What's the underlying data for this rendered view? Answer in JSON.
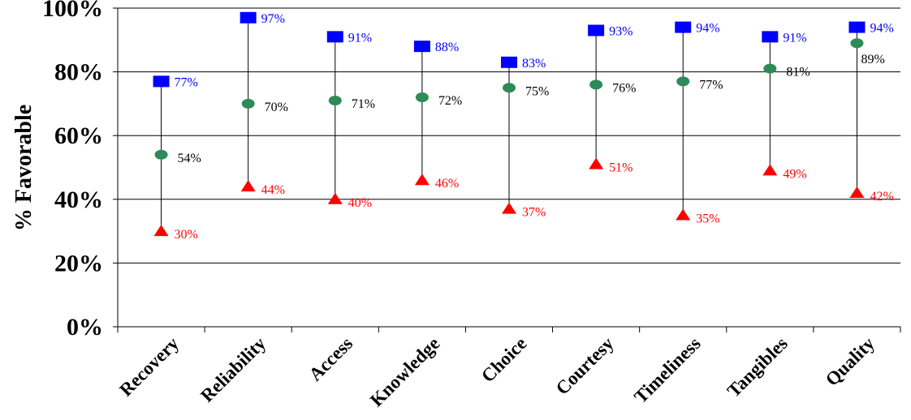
{
  "chart_data": {
    "type": "scatter",
    "title": "",
    "xlabel": "",
    "ylabel": "% Favorable",
    "ylim": [
      0,
      100
    ],
    "yticks": [
      0,
      20,
      40,
      60,
      80,
      100
    ],
    "ytick_labels": [
      "0%",
      "20%",
      "40%",
      "60%",
      "80%",
      "100%"
    ],
    "grid": "horizontal",
    "legend": "none",
    "categories": [
      "Recovery",
      "Reliability",
      "Access",
      "Knowledge",
      "Choice",
      "Courtesy",
      "Timeliness",
      "Tangibles",
      "Quality"
    ],
    "series": [
      {
        "marker": "square",
        "color": "#0000ff",
        "values": [
          77,
          97,
          91,
          88,
          83,
          93,
          94,
          91,
          94
        ],
        "labels": [
          "77%",
          "97%",
          "91%",
          "88%",
          "83%",
          "93%",
          "94%",
          "91%",
          "94%"
        ]
      },
      {
        "marker": "circle",
        "color": "#2e8b57",
        "values": [
          54,
          70,
          71,
          72,
          75,
          76,
          77,
          81,
          89
        ],
        "labels": [
          "54%",
          "70%",
          "71%",
          "72%",
          "75%",
          "76%",
          "77%",
          "81%",
          "89%"
        ]
      },
      {
        "marker": "triangle",
        "color": "#ff0000",
        "values": [
          30,
          44,
          40,
          46,
          37,
          51,
          35,
          49,
          42
        ],
        "labels": [
          "30%",
          "44%",
          "40%",
          "46%",
          "37%",
          "51%",
          "35%",
          "49%",
          "42%"
        ]
      }
    ]
  }
}
